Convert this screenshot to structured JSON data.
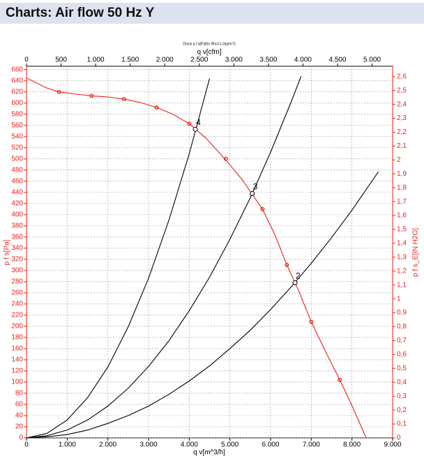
{
  "header": {
    "title": "Charts: Air flow 50 Hz Y"
  },
  "chart_data": {
    "type": "line",
    "subtitle": "Druck p f a[Pa]für Rho=1.2kg/m^3",
    "x_label": "q v[m^3/h]",
    "x2_label": "q v[cfm]",
    "y_label": "p f s[Pa]",
    "y2_label": "p f s_E[IN H2O]",
    "xlim": [
      0,
      9000
    ],
    "xticks": [
      0,
      {
        "value": 1000,
        "label": "1.000"
      },
      {
        "value": 2000,
        "label": "2.000"
      },
      {
        "value": 3000,
        "label": "3.000"
      },
      {
        "value": 4000,
        "label": "4.000"
      },
      {
        "value": 5000,
        "label": "5.000"
      },
      {
        "value": 6000,
        "label": "6.000"
      },
      {
        "value": 7000,
        "label": "7.000"
      },
      {
        "value": 8000,
        "label": "8.000"
      },
      {
        "value": 9000,
        "label": "9.000"
      }
    ],
    "x2lim": [
      0,
      5297
    ],
    "x2ticks": [
      0,
      500,
      {
        "value": 1000,
        "label": "1.000"
      },
      {
        "value": 1500,
        "label": "1.500"
      },
      {
        "value": 2000,
        "label": "2.000"
      },
      {
        "value": 2500,
        "label": "2.500"
      },
      {
        "value": 3000,
        "label": "3.000"
      },
      {
        "value": 3500,
        "label": "3.500"
      },
      {
        "value": 4000,
        "label": "4.000"
      },
      {
        "value": 4500,
        "label": "4.500"
      },
      {
        "value": 5000,
        "label": "5.000"
      }
    ],
    "ylim": [
      0,
      666
    ],
    "yticks": [
      0,
      20,
      40,
      60,
      80,
      100,
      120,
      140,
      160,
      180,
      200,
      220,
      240,
      260,
      280,
      300,
      320,
      340,
      360,
      380,
      400,
      420,
      440,
      460,
      480,
      500,
      520,
      540,
      560,
      580,
      600,
      620,
      640,
      660
    ],
    "y2lim": [
      0,
      2.674
    ],
    "y2ticks": [
      0,
      {
        "value": 0.1,
        "label": "0,1"
      },
      {
        "value": 0.2,
        "label": "0,2"
      },
      {
        "value": 0.3,
        "label": "0,3"
      },
      {
        "value": 0.4,
        "label": "0,4"
      },
      {
        "value": 0.5,
        "label": "0,5"
      },
      {
        "value": 0.6,
        "label": "0,6"
      },
      {
        "value": 0.7,
        "label": "0,7"
      },
      {
        "value": 0.8,
        "label": "0,8"
      },
      {
        "value": 0.9,
        "label": "0,9"
      },
      1,
      {
        "value": 1.1,
        "label": "1,1"
      },
      {
        "value": 1.2,
        "label": "1,2"
      },
      {
        "value": 1.3,
        "label": "1,3"
      },
      {
        "value": 1.4,
        "label": "1,4"
      },
      {
        "value": 1.5,
        "label": "1,5"
      },
      {
        "value": 1.6,
        "label": "1,6"
      },
      {
        "value": 1.7,
        "label": "1,7"
      },
      {
        "value": 1.8,
        "label": "1,8"
      },
      {
        "value": 1.9,
        "label": "1,9"
      },
      2,
      {
        "value": 2.1,
        "label": "2,1"
      },
      {
        "value": 2.2,
        "label": "2,2"
      },
      {
        "value": 2.3,
        "label": "2,3"
      },
      {
        "value": 2.4,
        "label": "2,4"
      },
      {
        "value": 2.5,
        "label": "2,5"
      },
      {
        "value": 2.6,
        "label": "2,6"
      }
    ],
    "grid": true,
    "series": [
      {
        "color": "#e8201a",
        "x": [
          0,
          500,
          800,
          1200,
          1600,
          2000,
          2400,
          2800,
          3200,
          3600,
          4000,
          4400,
          4900,
          5300,
          5800,
          6100,
          6400,
          6700,
          7000,
          7350,
          7700,
          8000,
          8350
        ],
        "values": [
          645,
          627,
          620,
          616,
          613,
          611,
          607,
          601,
          592,
          580,
          563,
          538,
          498,
          463,
          410,
          365,
          310,
          262,
          208,
          155,
          104,
          58,
          0
        ]
      },
      {
        "color": "#000000",
        "x": [
          0,
          500,
          1000,
          1500,
          2000,
          2500,
          3000,
          3500,
          4000,
          4500
        ],
        "values": [
          0,
          8,
          32,
          72,
          127,
          199,
          286,
          390,
          509,
          644
        ]
      },
      {
        "color": "#000000",
        "x": [
          0,
          500,
          1000,
          1500,
          2000,
          2500,
          3000,
          3500,
          4000,
          4500,
          5000,
          5500,
          6000,
          6500,
          6750
        ],
        "values": [
          0,
          4,
          14,
          32,
          57,
          89,
          128,
          174,
          228,
          288,
          356,
          430,
          512,
          601,
          648
        ]
      },
      {
        "color": "#000000",
        "x": [
          0,
          500,
          1000,
          1500,
          2000,
          2500,
          3000,
          3500,
          4000,
          4500,
          5000,
          5500,
          6000,
          6500,
          7000,
          7500,
          8000,
          8500,
          8650
        ],
        "values": [
          0,
          2,
          6,
          14,
          26,
          40,
          57,
          78,
          102,
          129,
          160,
          193,
          230,
          270,
          313,
          359,
          408,
          461,
          477
        ]
      }
    ],
    "markers": {
      "color": "#e8201a",
      "x": [
        800,
        1600,
        2400,
        3200,
        4000,
        4900,
        5800,
        6400,
        7000,
        7700
      ],
      "values": [
        620,
        613,
        607,
        592,
        563,
        500,
        410,
        310,
        208,
        104
      ]
    },
    "points": [
      {
        "label": "4",
        "x": 4150,
        "y": 553
      },
      {
        "label": "3",
        "x": 5550,
        "y": 438
      },
      {
        "label": "2",
        "x": 6600,
        "y": 278
      }
    ]
  }
}
